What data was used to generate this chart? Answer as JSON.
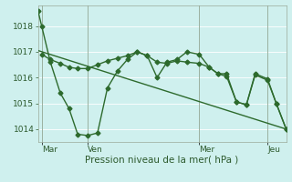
{
  "bg_color": "#cff0ee",
  "grid_color": "#ffffff",
  "line_color": "#2d6a2d",
  "xlabel": "Pression niveau de la mer( hPa )",
  "ylim": [
    1013.5,
    1018.8
  ],
  "yticks": [
    1014,
    1015,
    1016,
    1017,
    1018
  ],
  "xlim": [
    0,
    20
  ],
  "xtick_positions": [
    0.3,
    4,
    13,
    18.5
  ],
  "xtick_labels": [
    "Mar",
    "Ven",
    "Mer",
    "Jeu"
  ],
  "vline_positions": [
    0.3,
    4,
    13,
    18.5
  ],
  "line1_x": [
    0,
    0.3,
    1.0,
    1.8,
    2.5,
    3.2,
    4.0,
    4.8,
    5.6,
    6.4,
    7.2,
    8.0,
    8.8,
    9.6,
    10.4,
    11.2,
    12.0,
    13.0,
    13.8,
    14.5,
    15.2,
    16.0,
    16.8,
    17.5,
    18.5,
    19.2,
    20.0
  ],
  "line1_y": [
    1018.6,
    1018.0,
    1016.6,
    1015.4,
    1014.8,
    1013.8,
    1013.75,
    1013.85,
    1015.6,
    1016.25,
    1016.7,
    1017.0,
    1016.85,
    1016.0,
    1016.6,
    1016.7,
    1017.0,
    1016.9,
    1016.4,
    1016.15,
    1016.15,
    1015.05,
    1014.95,
    1016.15,
    1015.95,
    1015.0,
    1014.0
  ],
  "line2_x": [
    0,
    20
  ],
  "line2_y": [
    1017.05,
    1014.0
  ],
  "line3_x": [
    0.3,
    1.0,
    1.8,
    2.5,
    3.2,
    4.0,
    4.8,
    5.6,
    6.4,
    7.2,
    8.0,
    8.8,
    9.6,
    10.4,
    11.2,
    12.0,
    13.0,
    13.8,
    14.5,
    15.2,
    16.0,
    16.8,
    17.5,
    18.5,
    19.2,
    20.0
  ],
  "line3_y": [
    1016.9,
    1016.7,
    1016.55,
    1016.4,
    1016.35,
    1016.35,
    1016.5,
    1016.65,
    1016.75,
    1016.85,
    1017.0,
    1016.85,
    1016.6,
    1016.55,
    1016.65,
    1016.6,
    1016.55,
    1016.4,
    1016.15,
    1016.05,
    1015.05,
    1014.95,
    1016.1,
    1015.9,
    1015.0,
    1014.0
  ],
  "markersize": 2.5,
  "linewidth": 1.0
}
